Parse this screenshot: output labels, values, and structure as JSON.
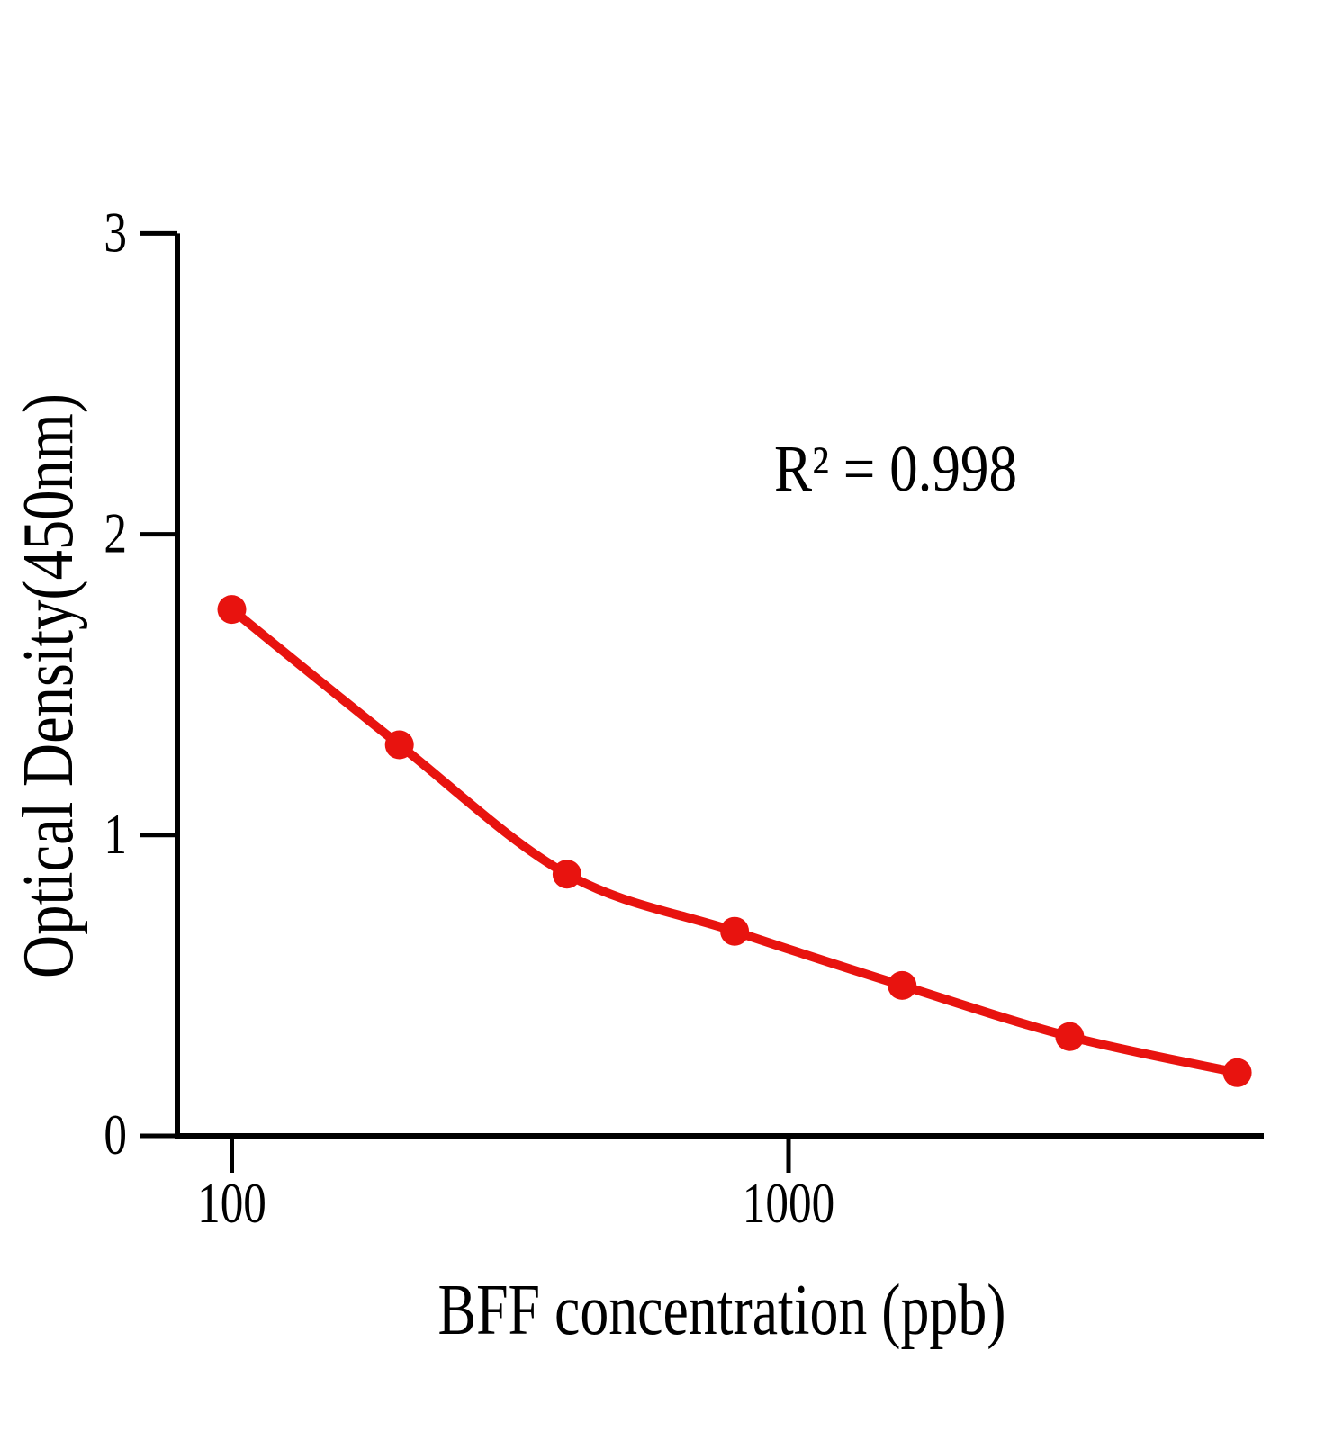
{
  "figure": {
    "background_color": "#ffffff",
    "accent_color": "#e8130f",
    "axis_color": "#000000"
  },
  "chart_data": {
    "type": "scatter",
    "title": "",
    "xlabel": "BFF concentration (ppb)",
    "ylabel": "Optical Density(450nm)",
    "annotation": "R² = 0.998",
    "r_squared": 0.998,
    "x_scale": "log",
    "grid": false,
    "legend": "none",
    "x": [
      100,
      200,
      400,
      800,
      1600,
      3200,
      6400
    ],
    "y": [
      1.75,
      1.3,
      0.87,
      0.68,
      0.5,
      0.33,
      0.21
    ],
    "trendline": "smooth inhibition curve through points",
    "x_ticks": [
      100,
      1000
    ],
    "x_tick_labels": [
      "100",
      "1000"
    ],
    "y_ticks": [
      0,
      1,
      2,
      3
    ],
    "y_tick_labels": [
      "0",
      "1",
      "2",
      "3"
    ],
    "xlim": [
      80,
      7100
    ],
    "ylim": [
      0,
      3
    ],
    "marker_color": "#e8130f",
    "line_color": "#e8130f"
  }
}
